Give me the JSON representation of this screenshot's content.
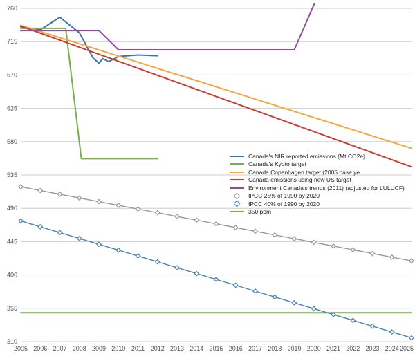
{
  "chart_data": {
    "type": "line",
    "title": "",
    "xlabel": "",
    "ylabel": "",
    "xlim": [
      2005,
      2025
    ],
    "ylim": [
      310,
      760
    ],
    "yticks": [
      310,
      355,
      400,
      445,
      490,
      535,
      580,
      625,
      670,
      715,
      760
    ],
    "xticks": [
      2005,
      2006,
      2007,
      2008,
      2009,
      2010,
      2011,
      2012,
      2013,
      2014,
      2015,
      2016,
      2017,
      2018,
      2019,
      2020,
      2021,
      2022,
      2023,
      2024,
      2025
    ],
    "grid": true,
    "legend_position": "middle-right",
    "grid_color": "#cccccc",
    "axis_label_color": "#555555",
    "series": [
      {
        "name": "Canada's NIR reported emissions (Mt CO2e)",
        "color": "#3c73ad",
        "marker": null,
        "points": [
          [
            2005,
            735
          ],
          [
            2006,
            731
          ],
          [
            2007,
            748
          ],
          [
            2008,
            727
          ],
          [
            2008.7,
            693
          ],
          [
            2009,
            686
          ],
          [
            2009.2,
            692
          ],
          [
            2009.5,
            688
          ],
          [
            2010,
            695
          ],
          [
            2011,
            697
          ],
          [
            2012,
            696
          ]
        ]
      },
      {
        "name": "Canada's Kyoto target",
        "color": "#77b04b",
        "marker": null,
        "points": [
          [
            2005,
            733
          ],
          [
            2007.3,
            733
          ],
          [
            2008.1,
            557
          ],
          [
            2012,
            557
          ]
        ]
      },
      {
        "name": "Canada Copenhagen target (2005 base ye",
        "color": "#f3a83e",
        "marker": null,
        "points": [
          [
            2005,
            737
          ],
          [
            2025,
            571
          ]
        ]
      },
      {
        "name": "Canada emissions using new US target",
        "color": "#cc3c32",
        "marker": null,
        "points": [
          [
            2005,
            736
          ],
          [
            2025,
            546
          ]
        ]
      },
      {
        "name": "Environment Canada's trends (2011) (adjusted for LULUCF)",
        "color": "#8d4c9e",
        "marker": null,
        "points": [
          [
            2005,
            730
          ],
          [
            2009,
            730
          ],
          [
            2010,
            704
          ],
          [
            2019,
            704
          ],
          [
            2020.5,
            795
          ]
        ]
      },
      {
        "name": "IPCC 25% of 1990 by 2020",
        "color": "#999999",
        "marker": "diamond",
        "points": [
          [
            2005,
            519
          ],
          [
            2006,
            514
          ],
          [
            2007,
            509
          ],
          [
            2008,
            504
          ],
          [
            2009,
            499
          ],
          [
            2010,
            494
          ],
          [
            2011,
            489
          ],
          [
            2012,
            484
          ],
          [
            2013,
            479
          ],
          [
            2014,
            474
          ],
          [
            2015,
            469
          ],
          [
            2016,
            464
          ],
          [
            2017,
            459
          ],
          [
            2018,
            454
          ],
          [
            2019,
            449
          ],
          [
            2020,
            444
          ],
          [
            2021,
            439
          ],
          [
            2022,
            434
          ],
          [
            2023,
            429
          ],
          [
            2024,
            424
          ],
          [
            2025,
            419
          ]
        ]
      },
      {
        "name": "IPCC 40% of 1990 by 2020",
        "color": "#4a82b4",
        "marker": "diamond",
        "points": [
          [
            2005,
            473
          ],
          [
            2006,
            465.1
          ],
          [
            2007,
            457.2
          ],
          [
            2008,
            449.3
          ],
          [
            2009,
            441.4
          ],
          [
            2010,
            433.5
          ],
          [
            2011,
            425.6
          ],
          [
            2012,
            417.7
          ],
          [
            2013,
            409.8
          ],
          [
            2014,
            401.9
          ],
          [
            2015,
            394
          ],
          [
            2016,
            386.1
          ],
          [
            2017,
            378.2
          ],
          [
            2018,
            370.3
          ],
          [
            2019,
            362.4
          ],
          [
            2020,
            354.5
          ],
          [
            2021,
            346.6
          ],
          [
            2022,
            338.7
          ],
          [
            2023,
            330.8
          ],
          [
            2024,
            322.9
          ],
          [
            2025,
            315
          ]
        ]
      },
      {
        "name": "350 ppm",
        "color": "#77b04b",
        "marker": null,
        "points": [
          [
            2005,
            349
          ],
          [
            2025,
            349
          ]
        ]
      }
    ]
  }
}
